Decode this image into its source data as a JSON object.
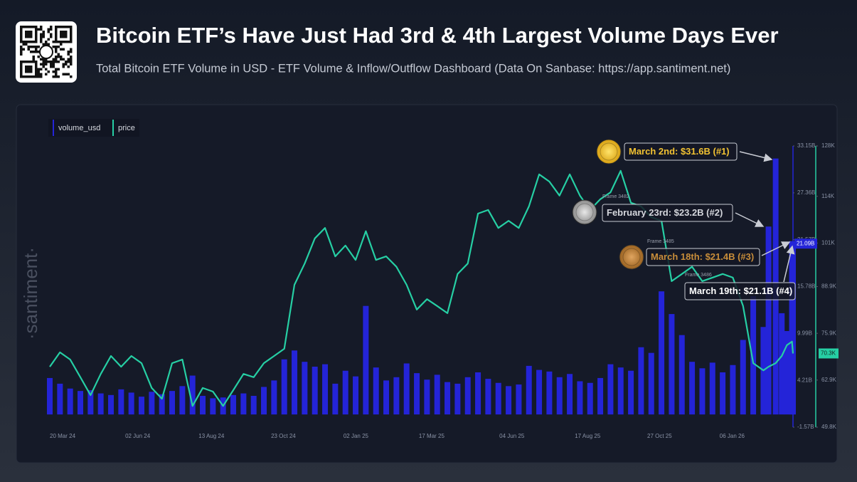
{
  "chart_data": {
    "type": "combo",
    "title": "Bitcoin ETF’s Have Just Had 3rd & 4th Largest Volume Days Ever",
    "subtitle": "Total Bitcoin ETF Volume in USD - ETF Volume & Inflow/Outflow Dashboard (Data On Sanbase: https://app.santiment.net)",
    "watermark": "·santiment·",
    "x": [
      "2024-03-20",
      "2024-03-30",
      "2024-04-09",
      "2024-04-19",
      "2024-04-29",
      "2024-05-09",
      "2024-05-19",
      "2024-05-29",
      "2024-06-08",
      "2024-06-18",
      "2024-06-28",
      "2024-07-08",
      "2024-07-18",
      "2024-07-28",
      "2024-08-07",
      "2024-08-17",
      "2024-08-27",
      "2024-09-06",
      "2024-09-16",
      "2024-09-26",
      "2024-10-06",
      "2024-10-16",
      "2024-10-26",
      "2024-11-05",
      "2024-11-15",
      "2024-11-25",
      "2024-12-05",
      "2024-12-15",
      "2024-12-25",
      "2025-01-04",
      "2025-01-14",
      "2025-01-24",
      "2025-02-03",
      "2025-02-13",
      "2025-02-23",
      "2025-03-05",
      "2025-03-15",
      "2025-03-25",
      "2025-04-04",
      "2025-04-14",
      "2025-04-24",
      "2025-05-04",
      "2025-05-14",
      "2025-05-24",
      "2025-06-03",
      "2025-06-13",
      "2025-06-23",
      "2025-07-03",
      "2025-07-13",
      "2025-07-23",
      "2025-08-02",
      "2025-08-12",
      "2025-08-22",
      "2025-09-01",
      "2025-09-11",
      "2025-09-21",
      "2025-10-01",
      "2025-10-11",
      "2025-10-21",
      "2025-10-31",
      "2025-11-10",
      "2025-11-20",
      "2025-11-30",
      "2025-12-10",
      "2025-12-20",
      "2025-12-30",
      "2026-01-09",
      "2026-01-19",
      "2026-01-29",
      "2026-02-08",
      "2026-02-18",
      "2026-02-23",
      "2026-03-02",
      "2026-03-08",
      "2026-03-13",
      "2026-03-18",
      "2026-03-19"
    ],
    "xlim": [
      "2024-03-20",
      "2026-03-19"
    ],
    "xticks": [
      {
        "value": "2024-03-20",
        "label": "20 Mar 24"
      },
      {
        "value": "2024-06-02",
        "label": "02 Jun 24"
      },
      {
        "value": "2024-08-13",
        "label": "13 Aug 24"
      },
      {
        "value": "2024-10-23",
        "label": "23 Oct 24"
      },
      {
        "value": "2025-01-02",
        "label": "02 Jan 25"
      },
      {
        "value": "2025-03-17",
        "label": "17 Mar 25"
      },
      {
        "value": "2025-06-04",
        "label": "04 Jun 25"
      },
      {
        "value": "2025-08-17",
        "label": "17 Aug 25"
      },
      {
        "value": "2025-10-27",
        "label": "27 Oct 25"
      },
      {
        "value": "2026-01-06",
        "label": "06 Jan 26"
      }
    ],
    "ylim": [
      -1.57,
      33.15
    ],
    "yticks": [
      {
        "value": 33.15,
        "label": "33.15B"
      },
      {
        "value": 27.36,
        "label": "27.36B"
      },
      {
        "value": 21.57,
        "label": "21.57B"
      },
      {
        "value": 15.78,
        "label": "15.78B"
      },
      {
        "value": 9.99,
        "label": "9.99B"
      },
      {
        "value": 4.21,
        "label": "4.21B"
      },
      {
        "value": -1.57,
        "label": "-1.57B"
      }
    ],
    "y2lim": [
      49.8,
      128
    ],
    "y2ticks": [
      {
        "value": 128,
        "label": "128K"
      },
      {
        "value": 114,
        "label": "114K"
      },
      {
        "value": 101,
        "label": "101K"
      },
      {
        "value": 88.9,
        "label": "88.9K"
      },
      {
        "value": 75.9,
        "label": "75.9K"
      },
      {
        "value": 62.9,
        "label": "62.9K"
      },
      {
        "value": 49.8,
        "label": "49.8K"
      }
    ],
    "series": [
      {
        "name": "volume_usd",
        "type": "bar",
        "color": "#2424d8",
        "last_value_label": "21.09B",
        "values": [
          4.5,
          3.8,
          3.2,
          2.9,
          3.0,
          2.6,
          2.4,
          3.1,
          2.7,
          2.2,
          2.8,
          2.5,
          2.9,
          3.5,
          4.8,
          2.3,
          2.0,
          2.1,
          2.4,
          2.6,
          2.3,
          3.4,
          4.2,
          6.8,
          7.9,
          6.5,
          5.9,
          6.2,
          3.8,
          5.4,
          4.7,
          13.4,
          5.8,
          4.2,
          4.6,
          6.3,
          5.1,
          4.3,
          4.9,
          4.0,
          3.8,
          4.6,
          5.2,
          4.4,
          3.9,
          3.5,
          3.7,
          6.0,
          5.5,
          5.3,
          4.6,
          5.0,
          4.1,
          3.9,
          4.5,
          6.2,
          5.8,
          5.4,
          8.3,
          7.6,
          15.2,
          12.4,
          9.8,
          6.5,
          5.7,
          6.4,
          5.2,
          6.1,
          9.2,
          14.6,
          10.8,
          23.2,
          31.6,
          12.5,
          10.3,
          21.4,
          21.09
        ]
      },
      {
        "name": "price",
        "type": "line",
        "axis": "y2",
        "color": "#26cfa4",
        "last_value_label": "70.3K",
        "values": [
          66.6,
          70.6,
          68.6,
          63.7,
          58.7,
          64.6,
          69.6,
          66.6,
          69.6,
          67.6,
          60.7,
          57.7,
          67.6,
          68.6,
          55.7,
          60.7,
          59.7,
          55.7,
          60.1,
          64.6,
          63.7,
          67.6,
          69.6,
          71.6,
          89.4,
          95.3,
          102.3,
          105.2,
          97.3,
          100.3,
          96.3,
          104.3,
          96.3,
          97.3,
          94.4,
          89.4,
          82.5,
          85.4,
          83.5,
          81.5,
          92.4,
          95.3,
          109.2,
          110.2,
          105.2,
          107.2,
          105.2,
          111.2,
          120.1,
          118.1,
          114.2,
          120.1,
          114.2,
          110.2,
          113.2,
          115.1,
          121.1,
          112.2,
          111.2,
          108.2,
          107.2,
          90.4,
          92.4,
          94.4,
          90.4,
          91.4,
          92.4,
          91.4,
          83.5,
          67.6,
          65.6,
          66.6,
          67.6,
          69.6,
          72.6,
          73.6,
          70.3
        ]
      }
    ],
    "annotations": [
      {
        "text": "March 2nd: $31.6B (#1)",
        "color": "#f2c232"
      },
      {
        "text": "February 23rd: $23.2B (#2)",
        "color": "#d4d6dc"
      },
      {
        "text": "March 18th: $21.4B (#3)",
        "color": "#c88d3a"
      },
      {
        "text": "March 19th: $21.1B (#4)",
        "color": "#ffffff"
      }
    ],
    "frames": [
      "Frame 3482",
      "Frame 3485",
      "Frame 3486"
    ]
  }
}
